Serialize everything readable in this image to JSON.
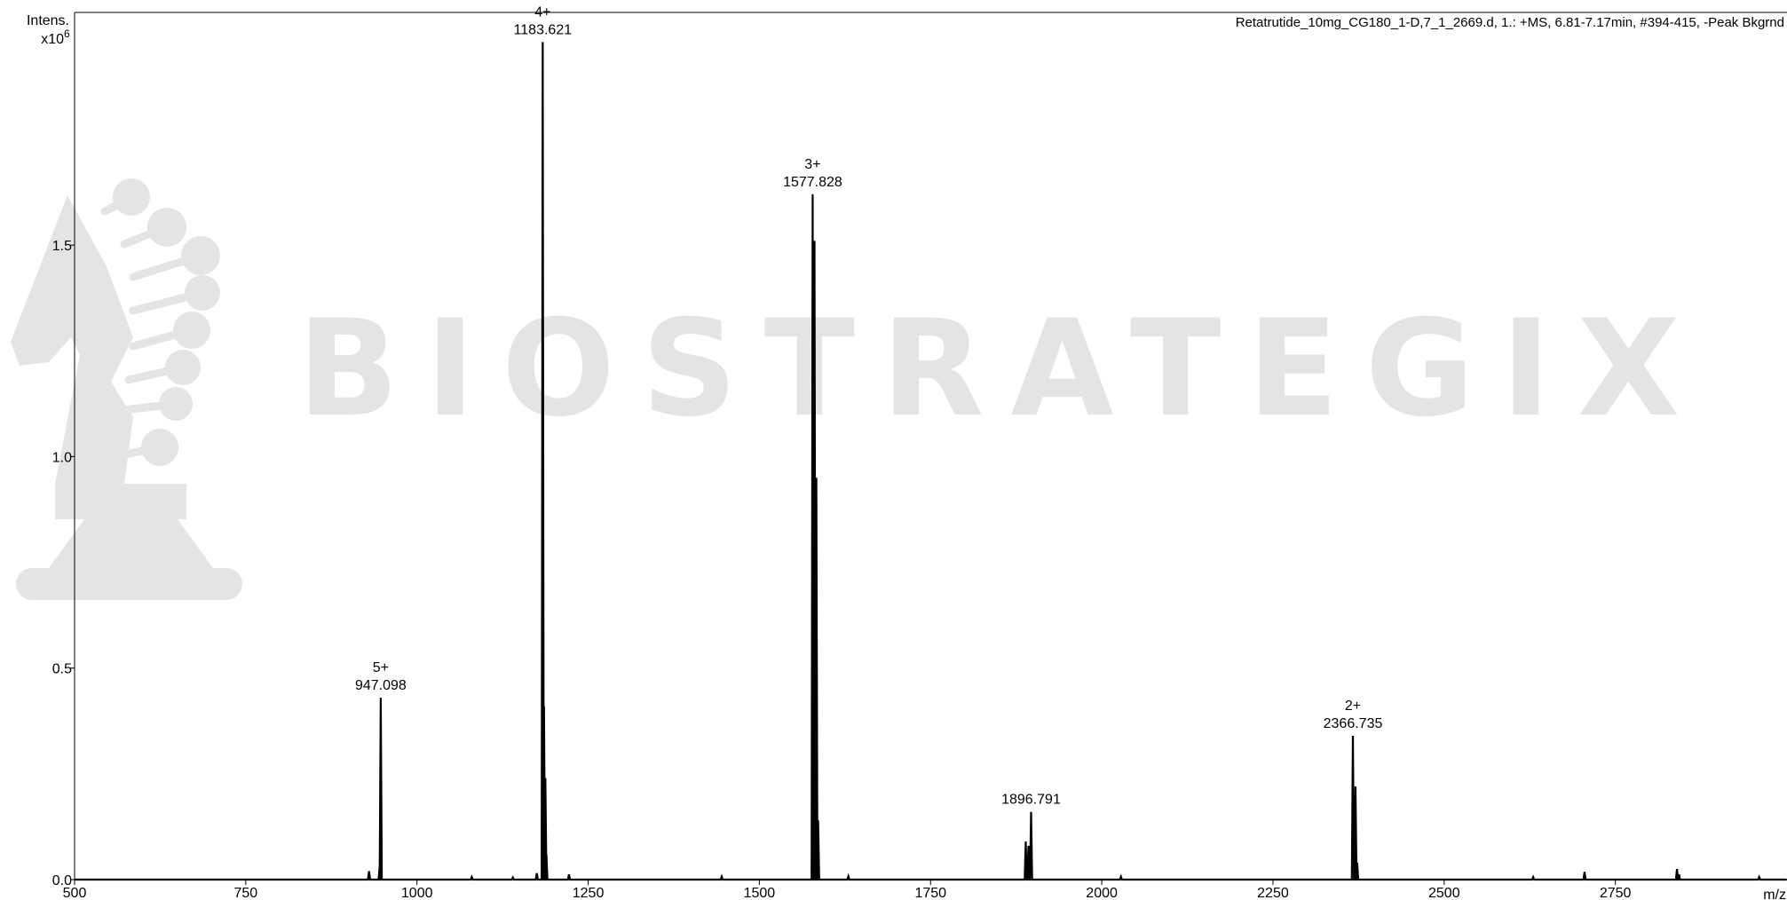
{
  "colors": {
    "trace": "#000000",
    "watermark": "#e4e4e4",
    "axis": "#000000"
  },
  "watermark": {
    "text": "BIOSTRATEGIX",
    "logo_icon": "chess-knight-icon"
  },
  "chart_data": {
    "type": "line",
    "title": "Retatrutide_10mg_CG180_1-D,7_1_2669.d, 1.: +MS, 6.81-7.17min, #394-415, -Peak Bkgrnd",
    "ylabel": "Intens.",
    "yexponent": "x10",
    "yexponent_sup": "6",
    "xlabel": "m/z",
    "xlim": [
      500,
      3000
    ],
    "ylim": [
      0,
      2.05
    ],
    "xticks": [
      500,
      750,
      1000,
      1250,
      1500,
      1750,
      2000,
      2250,
      2500,
      2750
    ],
    "xtick_labels": [
      "500",
      "750",
      "1000",
      "1250",
      "1500",
      "1750",
      "2000",
      "2250",
      "2500",
      "2750"
    ],
    "yticks": [
      0.0,
      0.5,
      1.0,
      1.5
    ],
    "ytick_labels": [
      "0.0",
      "0.5",
      "1.0",
      "1.5"
    ],
    "grid": false,
    "peaks": [
      {
        "mz": 930,
        "intensity": 0.02
      },
      {
        "mz": 945.5,
        "intensity": 0.03
      },
      {
        "mz": 947.098,
        "intensity": 0.43
      },
      {
        "mz": 1080,
        "intensity": 0.006
      },
      {
        "mz": 1140,
        "intensity": 0.005
      },
      {
        "mz": 1175,
        "intensity": 0.015
      },
      {
        "mz": 1183.621,
        "intensity": 1.98
      },
      {
        "mz": 1185.5,
        "intensity": 0.41
      },
      {
        "mz": 1187.5,
        "intensity": 0.24
      },
      {
        "mz": 1189,
        "intensity": 0.06
      },
      {
        "mz": 1222,
        "intensity": 0.012
      },
      {
        "mz": 1445,
        "intensity": 0.007
      },
      {
        "mz": 1577.828,
        "intensity": 1.62
      },
      {
        "mz": 1580.5,
        "intensity": 1.51
      },
      {
        "mz": 1583.2,
        "intensity": 0.95
      },
      {
        "mz": 1585.8,
        "intensity": 0.14
      },
      {
        "mz": 1630,
        "intensity": 0.008
      },
      {
        "mz": 1889,
        "intensity": 0.09
      },
      {
        "mz": 1893,
        "intensity": 0.08
      },
      {
        "mz": 1896.791,
        "intensity": 0.16
      },
      {
        "mz": 2028,
        "intensity": 0.007
      },
      {
        "mz": 2366.735,
        "intensity": 0.34
      },
      {
        "mz": 2370.5,
        "intensity": 0.22
      },
      {
        "mz": 2373,
        "intensity": 0.04
      },
      {
        "mz": 2630,
        "intensity": 0.006
      },
      {
        "mz": 2705,
        "intensity": 0.018
      },
      {
        "mz": 2840,
        "intensity": 0.025
      },
      {
        "mz": 2843,
        "intensity": 0.012
      },
      {
        "mz": 2960,
        "intensity": 0.006
      }
    ],
    "annotations": [
      {
        "charge": "5+",
        "mz_label": "947.098",
        "mz": 947.098,
        "intensity": 0.43
      },
      {
        "charge": "4+",
        "mz_label": "1183.621",
        "mz": 1183.621,
        "intensity": 1.98
      },
      {
        "charge": "3+",
        "mz_label": "1577.828",
        "mz": 1577.828,
        "intensity": 1.62
      },
      {
        "charge": "",
        "mz_label": "1896.791",
        "mz": 1896.791,
        "intensity": 0.16
      },
      {
        "charge": "2+",
        "mz_label": "2366.735",
        "mz": 2366.735,
        "intensity": 0.34
      }
    ]
  }
}
